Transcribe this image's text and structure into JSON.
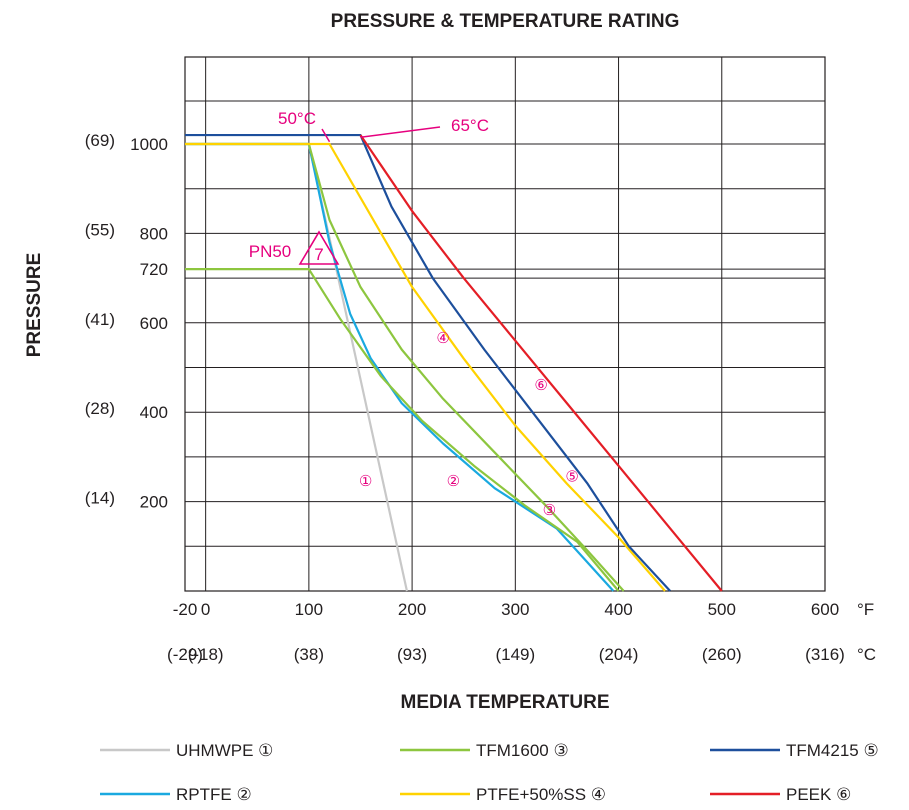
{
  "chart_data": {
    "type": "line",
    "title": "PRESSURE & TEMPERATURE RATING",
    "xlabel": "MEDIA TEMPERATURE",
    "ylabel": "PRESSURE",
    "xlim": [
      -20,
      600
    ],
    "ylim": [
      0,
      1000
    ],
    "grid": true,
    "legend_position": "bottom",
    "x_unit_primary": "°F",
    "x_unit_secondary": "°C",
    "x_ticks": [
      {
        "value": -20,
        "label": "-20",
        "alt": "(-29)"
      },
      {
        "value": 0,
        "label": "0",
        "alt": "(-18)"
      },
      {
        "value": 100,
        "label": "100",
        "alt": "(38)"
      },
      {
        "value": 200,
        "label": "200",
        "alt": "(93)"
      },
      {
        "value": 300,
        "label": "300",
        "alt": "(149)"
      },
      {
        "value": 400,
        "label": "400",
        "alt": "(204)"
      },
      {
        "value": 500,
        "label": "500",
        "alt": "(260)"
      },
      {
        "value": 600,
        "label": "600",
        "alt": "(316)"
      }
    ],
    "y_ticks": [
      {
        "value": 1000,
        "label": "1000",
        "alt": "(69)"
      },
      {
        "value": 800,
        "label": "800",
        "alt": "(55)"
      },
      {
        "value": 720,
        "label": "720",
        "alt": ""
      },
      {
        "value": 600,
        "label": "600",
        "alt": "(41)"
      },
      {
        "value": 400,
        "label": "400",
        "alt": "(28)"
      },
      {
        "value": 200,
        "label": "200",
        "alt": "(14)"
      }
    ],
    "series": [
      {
        "name": "UHMWPE",
        "marker": "①",
        "color": "#c8c8c8",
        "points": [
          [
            -20,
            1000
          ],
          [
            100,
            1000
          ],
          [
            195,
            0
          ]
        ]
      },
      {
        "name": "RPTFE",
        "marker": "②",
        "color": "#1aa9e0",
        "points": [
          [
            -20,
            1000
          ],
          [
            100,
            1000
          ],
          [
            120,
            780
          ],
          [
            140,
            620
          ],
          [
            160,
            520
          ],
          [
            190,
            420
          ],
          [
            230,
            330
          ],
          [
            280,
            230
          ],
          [
            340,
            140
          ],
          [
            395,
            0
          ]
        ]
      },
      {
        "name": "TFM1600",
        "marker": "③",
        "color": "#8dc63f",
        "points": [
          [
            -20,
            1000
          ],
          [
            100,
            1000
          ],
          [
            120,
            830
          ],
          [
            150,
            680
          ],
          [
            190,
            540
          ],
          [
            230,
            430
          ],
          [
            280,
            310
          ],
          [
            330,
            190
          ],
          [
            370,
            90
          ],
          [
            405,
            0
          ]
        ]
      },
      {
        "name": "PN50",
        "marker": "③",
        "color": "#8dc63f",
        "points": [
          [
            -20,
            720
          ],
          [
            100,
            720
          ],
          [
            130,
            610
          ],
          [
            170,
            480
          ],
          [
            210,
            380
          ],
          [
            260,
            280
          ],
          [
            310,
            190
          ],
          [
            360,
            110
          ],
          [
            400,
            0
          ]
        ]
      },
      {
        "name": "PTFE+50%SS",
        "marker": "④",
        "color": "#ffd200",
        "points": [
          [
            -20,
            1000
          ],
          [
            120,
            1000
          ],
          [
            150,
            880
          ],
          [
            200,
            680
          ],
          [
            250,
            520
          ],
          [
            300,
            370
          ],
          [
            350,
            240
          ],
          [
            400,
            120
          ],
          [
            445,
            0
          ]
        ]
      },
      {
        "name": "TFM4215",
        "marker": "⑤",
        "color": "#1d4f9c",
        "points": [
          [
            -20,
            1020
          ],
          [
            150,
            1020
          ],
          [
            180,
            860
          ],
          [
            220,
            700
          ],
          [
            270,
            540
          ],
          [
            320,
            390
          ],
          [
            370,
            240
          ],
          [
            410,
            100
          ],
          [
            450,
            0
          ]
        ]
      },
      {
        "name": "PEEK",
        "marker": "⑥",
        "color": "#e41e26",
        "points": [
          [
            150,
            1020
          ],
          [
            200,
            850
          ],
          [
            250,
            700
          ],
          [
            300,
            560
          ],
          [
            350,
            420
          ],
          [
            400,
            280
          ],
          [
            450,
            140
          ],
          [
            500,
            0
          ]
        ]
      }
    ],
    "annotations": [
      {
        "text": "50°C",
        "x": 120
      },
      {
        "text": "65°C",
        "x": 150
      },
      {
        "text": "PN50",
        "x": 100,
        "y": 720,
        "badge": "7"
      }
    ],
    "series_labels": [
      {
        "text": "①",
        "x": 155,
        "y": 235
      },
      {
        "text": "②",
        "x": 240,
        "y": 235
      },
      {
        "text": "③",
        "x": 333,
        "y": 170
      },
      {
        "text": "④",
        "x": 230,
        "y": 555
      },
      {
        "text": "⑤",
        "x": 355,
        "y": 245
      },
      {
        "text": "⑥",
        "x": 325,
        "y": 450
      }
    ],
    "legend": [
      {
        "label": "UHMWPE ①",
        "color": "#c8c8c8"
      },
      {
        "label": "TFM1600 ③",
        "color": "#8dc63f"
      },
      {
        "label": "TFM4215 ⑤",
        "color": "#1d4f9c"
      },
      {
        "label": "RPTFE ②",
        "color": "#1aa9e0"
      },
      {
        "label": "PTFE+50%SS ④",
        "color": "#ffd200"
      },
      {
        "label": "PEEK ⑥",
        "color": "#e41e26"
      }
    ],
    "annotation_color": "#e6007e"
  }
}
